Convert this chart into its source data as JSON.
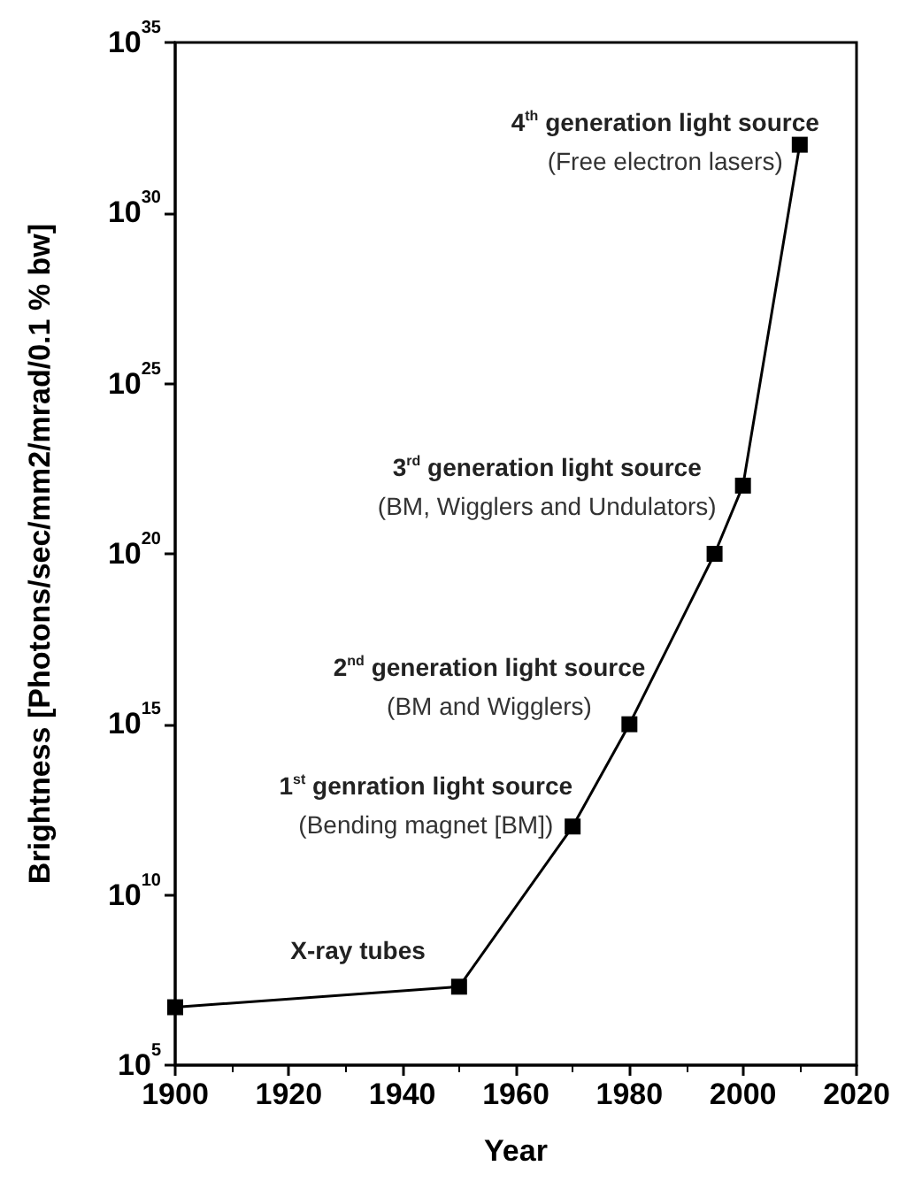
{
  "chart_data": {
    "type": "line",
    "xlabel": "Year",
    "ylabel": "Brightness [Photons/sec/mm2/mrad/0.1 % bw]",
    "x": [
      1900,
      1950,
      1970,
      1980,
      1995,
      2000,
      2010
    ],
    "series": [
      {
        "color": "#000000",
        "values": [
          5000000.0,
          20000000.0,
          1000000000000.0,
          1000000000000000.0,
          1e+20,
          1e+22,
          1e+32
        ]
      }
    ],
    "xlim": [
      1900,
      2020
    ],
    "xticks": [
      1900,
      1920,
      1940,
      1960,
      1980,
      2000,
      2020
    ],
    "log": "y",
    "ylim": [
      100000.0,
      1e+35
    ],
    "yticks": [
      {
        "value": 100000.0,
        "label": "10$^{5}$"
      },
      {
        "value": 10000000000.0,
        "label": "10$^{10}$"
      },
      {
        "value": 1000000000000000.0,
        "label": "10$^{15}$"
      },
      {
        "value": 1e+20,
        "label": "10$^{20}$"
      },
      {
        "value": 1e+25,
        "label": "10$^{25}$"
      },
      {
        "value": 1e+30,
        "label": "10$^{30}$"
      },
      {
        "value": 1e+35,
        "label": "10$^{35}$"
      }
    ],
    "marker": "square",
    "line_style": "solid",
    "grid": false,
    "annotations": [
      {
        "text": "X-ray tubes",
        "x": 1950,
        "y": 20000000.0
      },
      {
        "text": "1$^{st}$ genration light source\n(Bending magnet [BM])",
        "x": 1970,
        "y": 1000000000000.0
      },
      {
        "text": "2$^{nd}$ generation light source\n(BM and Wigglers)",
        "x": 1980,
        "y": 1000000000000000.0
      },
      {
        "text": "3$^{rd}$ generation light source\n(BM, Wigglers and Undulators)",
        "x": 2000,
        "y": 1e+22
      },
      {
        "text": "4$^{th}$ generation light source\n(Free electron lasers)",
        "x": 2010,
        "y": 1e+32
      }
    ]
  }
}
